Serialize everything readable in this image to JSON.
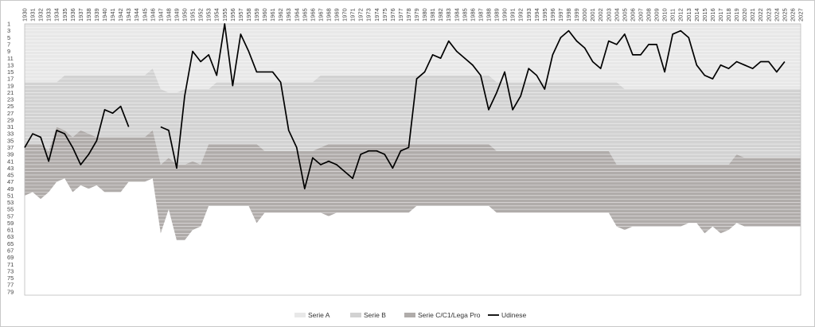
{
  "chart_data": {
    "type": "area",
    "title": "",
    "xlabel": "",
    "ylabel": "",
    "x_range": [
      1930,
      2027
    ],
    "y_range": [
      1,
      80
    ],
    "y_inverted": true,
    "y_ticks": [
      1,
      3,
      5,
      7,
      9,
      11,
      13,
      15,
      17,
      19,
      21,
      23,
      25,
      27,
      29,
      31,
      33,
      35,
      37,
      39,
      41,
      43,
      45,
      47,
      49,
      51,
      53,
      55,
      57,
      59,
      61,
      63,
      65,
      67,
      69,
      71,
      73,
      75,
      77,
      79
    ],
    "grid": true,
    "legend_position": "bottom-center",
    "colors": {
      "serie_a": "#e8e8e8",
      "serie_b": "#d2d2d2",
      "serie_c": "#b0acaa",
      "udinese": "#000000"
    },
    "legend": [
      "Serie A",
      "Serie B",
      "Serie C/C1/Lega Pro",
      "Udinese"
    ],
    "bands": {
      "serie_a_bottom": [
        [
          1930,
          18
        ],
        [
          1934,
          18
        ],
        [
          1935,
          16
        ],
        [
          1945,
          16
        ],
        [
          1946,
          14
        ],
        [
          1947,
          20
        ],
        [
          1948,
          21
        ],
        [
          1949,
          21
        ],
        [
          1950,
          20
        ],
        [
          1951,
          20
        ],
        [
          1953,
          20
        ],
        [
          1954,
          18
        ],
        [
          1966,
          18
        ],
        [
          1967,
          16
        ],
        [
          1988,
          16
        ],
        [
          1989,
          18
        ],
        [
          2004,
          18
        ],
        [
          2005,
          20
        ],
        [
          2027,
          20
        ]
      ],
      "serie_b_bottom": [
        [
          1930,
          36
        ],
        [
          1932,
          36
        ],
        [
          1933,
          38
        ],
        [
          1934,
          31
        ],
        [
          1935,
          32
        ],
        [
          1936,
          34
        ],
        [
          1937,
          32
        ],
        [
          1938,
          33
        ],
        [
          1939,
          34
        ],
        [
          1945,
          34
        ],
        [
          1946,
          32
        ],
        [
          1947,
          42
        ],
        [
          1948,
          40
        ],
        [
          1949,
          42
        ],
        [
          1950,
          42
        ],
        [
          1951,
          41
        ],
        [
          1952,
          42
        ],
        [
          1953,
          36
        ],
        [
          1959,
          36
        ],
        [
          1960,
          38
        ],
        [
          1966,
          38
        ],
        [
          1967,
          37
        ],
        [
          1968,
          36
        ],
        [
          1988,
          36
        ],
        [
          1989,
          38
        ],
        [
          2003,
          38
        ],
        [
          2004,
          42
        ],
        [
          2017,
          42
        ],
        [
          2018,
          42
        ],
        [
          2019,
          39
        ],
        [
          2020,
          40
        ],
        [
          2027,
          40
        ]
      ],
      "serie_c_bottom": [
        [
          1930,
          51
        ],
        [
          1931,
          50
        ],
        [
          1932,
          52
        ],
        [
          1933,
          50
        ],
        [
          1934,
          47
        ],
        [
          1935,
          46
        ],
        [
          1936,
          50
        ],
        [
          1937,
          48
        ],
        [
          1938,
          49
        ],
        [
          1939,
          48
        ],
        [
          1940,
          50
        ],
        [
          1942,
          50
        ],
        [
          1943,
          47
        ],
        [
          1945,
          47
        ],
        [
          1946,
          46
        ],
        [
          1947,
          62
        ],
        [
          1948,
          55
        ],
        [
          1949,
          64
        ],
        [
          1950,
          64
        ],
        [
          1951,
          61
        ],
        [
          1952,
          60
        ],
        [
          1953,
          54
        ],
        [
          1958,
          54
        ],
        [
          1959,
          59
        ],
        [
          1960,
          56
        ],
        [
          1967,
          56
        ],
        [
          1968,
          57
        ],
        [
          1969,
          56
        ],
        [
          1978,
          56
        ],
        [
          1979,
          54
        ],
        [
          1988,
          54
        ],
        [
          1989,
          56
        ],
        [
          2003,
          56
        ],
        [
          2004,
          60
        ],
        [
          2005,
          61
        ],
        [
          2006,
          60
        ],
        [
          2012,
          60
        ],
        [
          2013,
          59
        ],
        [
          2014,
          59
        ],
        [
          2015,
          62
        ],
        [
          2016,
          60
        ],
        [
          2017,
          62
        ],
        [
          2018,
          61
        ],
        [
          2019,
          59
        ],
        [
          2020,
          60
        ],
        [
          2027,
          60
        ]
      ]
    },
    "series": [
      {
        "name": "Udinese",
        "segments": [
          [
            [
              1930,
              37
            ],
            [
              1931,
              33
            ],
            [
              1932,
              34
            ],
            [
              1933,
              41
            ],
            [
              1934,
              32
            ],
            [
              1935,
              33
            ],
            [
              1936,
              37
            ],
            [
              1937,
              42
            ],
            [
              1938,
              39
            ],
            [
              1939,
              35
            ],
            [
              1940,
              26
            ],
            [
              1941,
              27
            ],
            [
              1942,
              25
            ],
            [
              1943,
              31
            ]
          ],
          [
            [
              1947,
              31
            ],
            [
              1948,
              32
            ],
            [
              1949,
              43
            ],
            [
              1950,
              22
            ],
            [
              1951,
              9
            ],
            [
              1952,
              12
            ],
            [
              1953,
              10
            ],
            [
              1954,
              16
            ],
            [
              1955,
              1
            ],
            [
              1956,
              19
            ],
            [
              1957,
              4
            ],
            [
              1958,
              9
            ],
            [
              1959,
              15
            ],
            [
              1960,
              15
            ],
            [
              1961,
              15
            ],
            [
              1962,
              18
            ],
            [
              1963,
              32
            ],
            [
              1964,
              37
            ],
            [
              1965,
              49
            ],
            [
              1966,
              40
            ],
            [
              1967,
              42
            ],
            [
              1968,
              41
            ],
            [
              1969,
              42
            ],
            [
              1970,
              44
            ],
            [
              1971,
              46
            ],
            [
              1972,
              39
            ],
            [
              1973,
              38
            ],
            [
              1974,
              38
            ],
            [
              1975,
              39
            ],
            [
              1976,
              43
            ],
            [
              1977,
              38
            ],
            [
              1978,
              37
            ],
            [
              1979,
              17
            ],
            [
              1980,
              15
            ],
            [
              1981,
              10
            ],
            [
              1982,
              11
            ],
            [
              1983,
              6
            ],
            [
              1984,
              9
            ],
            [
              1985,
              11
            ],
            [
              1986,
              13
            ],
            [
              1987,
              16
            ],
            [
              1988,
              26
            ],
            [
              1989,
              21
            ],
            [
              1990,
              15
            ],
            [
              1991,
              26
            ],
            [
              1992,
              22
            ],
            [
              1993,
              14
            ],
            [
              1994,
              16
            ],
            [
              1995,
              20
            ],
            [
              1996,
              10
            ],
            [
              1997,
              5
            ],
            [
              1998,
              3
            ],
            [
              1999,
              6
            ],
            [
              2000,
              8
            ],
            [
              2001,
              12
            ],
            [
              2002,
              14
            ],
            [
              2003,
              6
            ],
            [
              2004,
              7
            ],
            [
              2005,
              4
            ],
            [
              2006,
              10
            ],
            [
              2007,
              10
            ],
            [
              2008,
              7
            ],
            [
              2009,
              7
            ],
            [
              2010,
              15
            ],
            [
              2011,
              4
            ],
            [
              2012,
              3
            ],
            [
              2013,
              5
            ],
            [
              2014,
              13
            ],
            [
              2015,
              16
            ],
            [
              2016,
              17
            ],
            [
              2017,
              13
            ],
            [
              2018,
              14
            ],
            [
              2019,
              12
            ],
            [
              2020,
              13
            ],
            [
              2021,
              14
            ],
            [
              2022,
              12
            ],
            [
              2023,
              12
            ],
            [
              2024,
              15
            ],
            [
              2025,
              12
            ]
          ]
        ]
      }
    ]
  }
}
